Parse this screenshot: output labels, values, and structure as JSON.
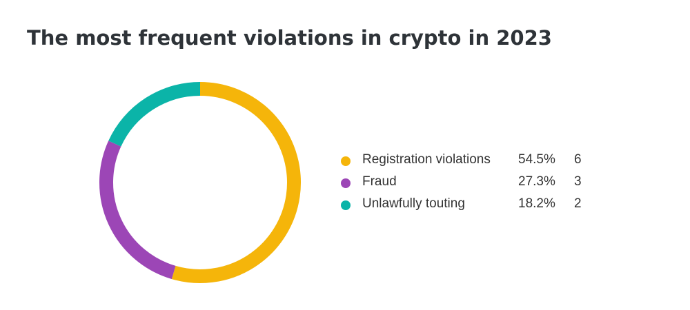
{
  "chart_data": {
    "type": "pie",
    "variant": "donut",
    "title": "The most frequent violations in crypto in 2023",
    "legend_position": "right",
    "slices": [
      {
        "label": "Registration violations",
        "percent": "54.5%",
        "percent_value": 54.5,
        "count": "6",
        "value": 6,
        "color": "#f5b50a"
      },
      {
        "label": "Fraud",
        "percent": "27.3%",
        "percent_value": 27.3,
        "count": "3",
        "value": 3,
        "color": "#9c46b6"
      },
      {
        "label": "Unlawfully touting",
        "percent": "18.2%",
        "percent_value": 18.2,
        "count": "2",
        "value": 2,
        "color": "#0bb4a8"
      }
    ]
  }
}
